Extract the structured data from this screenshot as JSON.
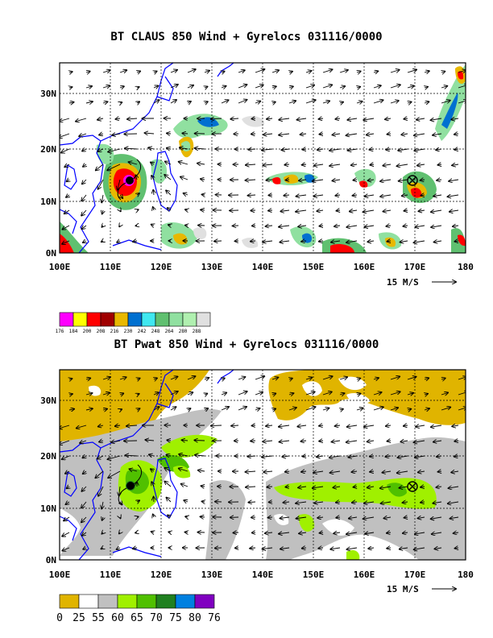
{
  "panels": [
    {
      "title": "BT CLAUS 850 Wind + Gyrelocs 031116/0000",
      "lat_labels": [
        "30N",
        "20N",
        "10N",
        "0N"
      ],
      "lon_labels": [
        "100E",
        "110E",
        "120E",
        "130E",
        "140E",
        "150E",
        "160E",
        "170E",
        "180"
      ],
      "ref_vector_label": "15 M/S",
      "legend": {
        "labels": [
          "176",
          "184",
          "200",
          "208",
          "216",
          "230",
          "242",
          "248",
          "264",
          "280",
          "288"
        ],
        "colors": [
          "#ff00ff",
          "#ffff00",
          "#ff0000",
          "#a00000",
          "#e8b800",
          "#0070d0",
          "#40e8f0",
          "#60c070",
          "#90e0a0",
          "#b0f0b0",
          "#e0e0e0"
        ]
      }
    },
    {
      "title": "BT Pwat 850 Wind + Gyrelocs 031116/0000",
      "lat_labels": [
        "30N",
        "20N",
        "10N",
        "0N"
      ],
      "lon_labels": [
        "100E",
        "110E",
        "120E",
        "130E",
        "140E",
        "150E",
        "160E",
        "170E",
        "180"
      ],
      "ref_vector_label": "15 M/S",
      "legend": {
        "labels": [
          "0",
          "25",
          "55",
          "60",
          "65",
          "70",
          "75",
          "80",
          "76"
        ],
        "colors": [
          "#e0b400",
          "#ffffff",
          "#c0c0c0",
          "#a0f000",
          "#50c000",
          "#208020",
          "#0080e0",
          "#8000c0"
        ]
      }
    }
  ]
}
